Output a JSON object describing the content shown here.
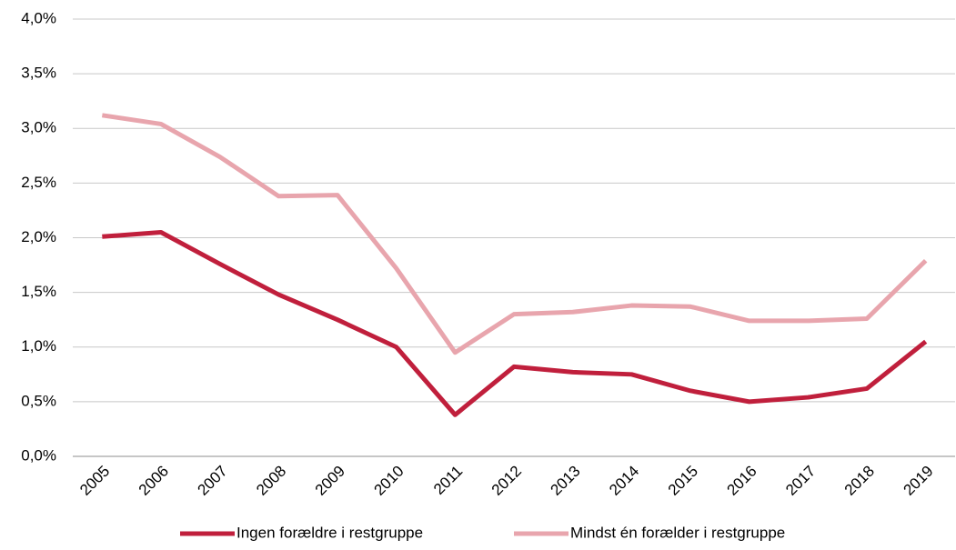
{
  "chart_data": {
    "type": "line",
    "categories": [
      "2005",
      "2006",
      "2007",
      "2008",
      "2009",
      "2010",
      "2011",
      "2012",
      "2013",
      "2014",
      "2015",
      "2016",
      "2017",
      "2018",
      "2019"
    ],
    "series": [
      {
        "name": "Ingen forældre i restgruppe",
        "color": "#c01f3c",
        "values": [
          2.01,
          2.05,
          1.76,
          1.48,
          1.25,
          1.0,
          0.38,
          0.82,
          0.77,
          0.75,
          0.6,
          0.5,
          0.54,
          0.62,
          1.05
        ]
      },
      {
        "name": "Mindst én forælder i restgruppe",
        "color": "#e8a5ad",
        "values": [
          3.12,
          3.04,
          2.74,
          2.38,
          2.39,
          1.72,
          0.95,
          1.3,
          1.32,
          1.38,
          1.37,
          1.24,
          1.24,
          1.26,
          1.79
        ]
      }
    ],
    "ylim": [
      0,
      4.0
    ],
    "yticks": [
      {
        "value": 0,
        "label": "0,0%"
      },
      {
        "value": 0.5,
        "label": "0,5%"
      },
      {
        "value": 1.0,
        "label": "1,0%"
      },
      {
        "value": 1.5,
        "label": "1,5%"
      },
      {
        "value": 2.0,
        "label": "2,0%"
      },
      {
        "value": 2.5,
        "label": "2,5%"
      },
      {
        "value": 3.0,
        "label": "3,0%"
      },
      {
        "value": 3.5,
        "label": "3,5%"
      },
      {
        "value": 4.0,
        "label": "4,0%"
      }
    ],
    "grid": true,
    "legend": "bottom"
  }
}
